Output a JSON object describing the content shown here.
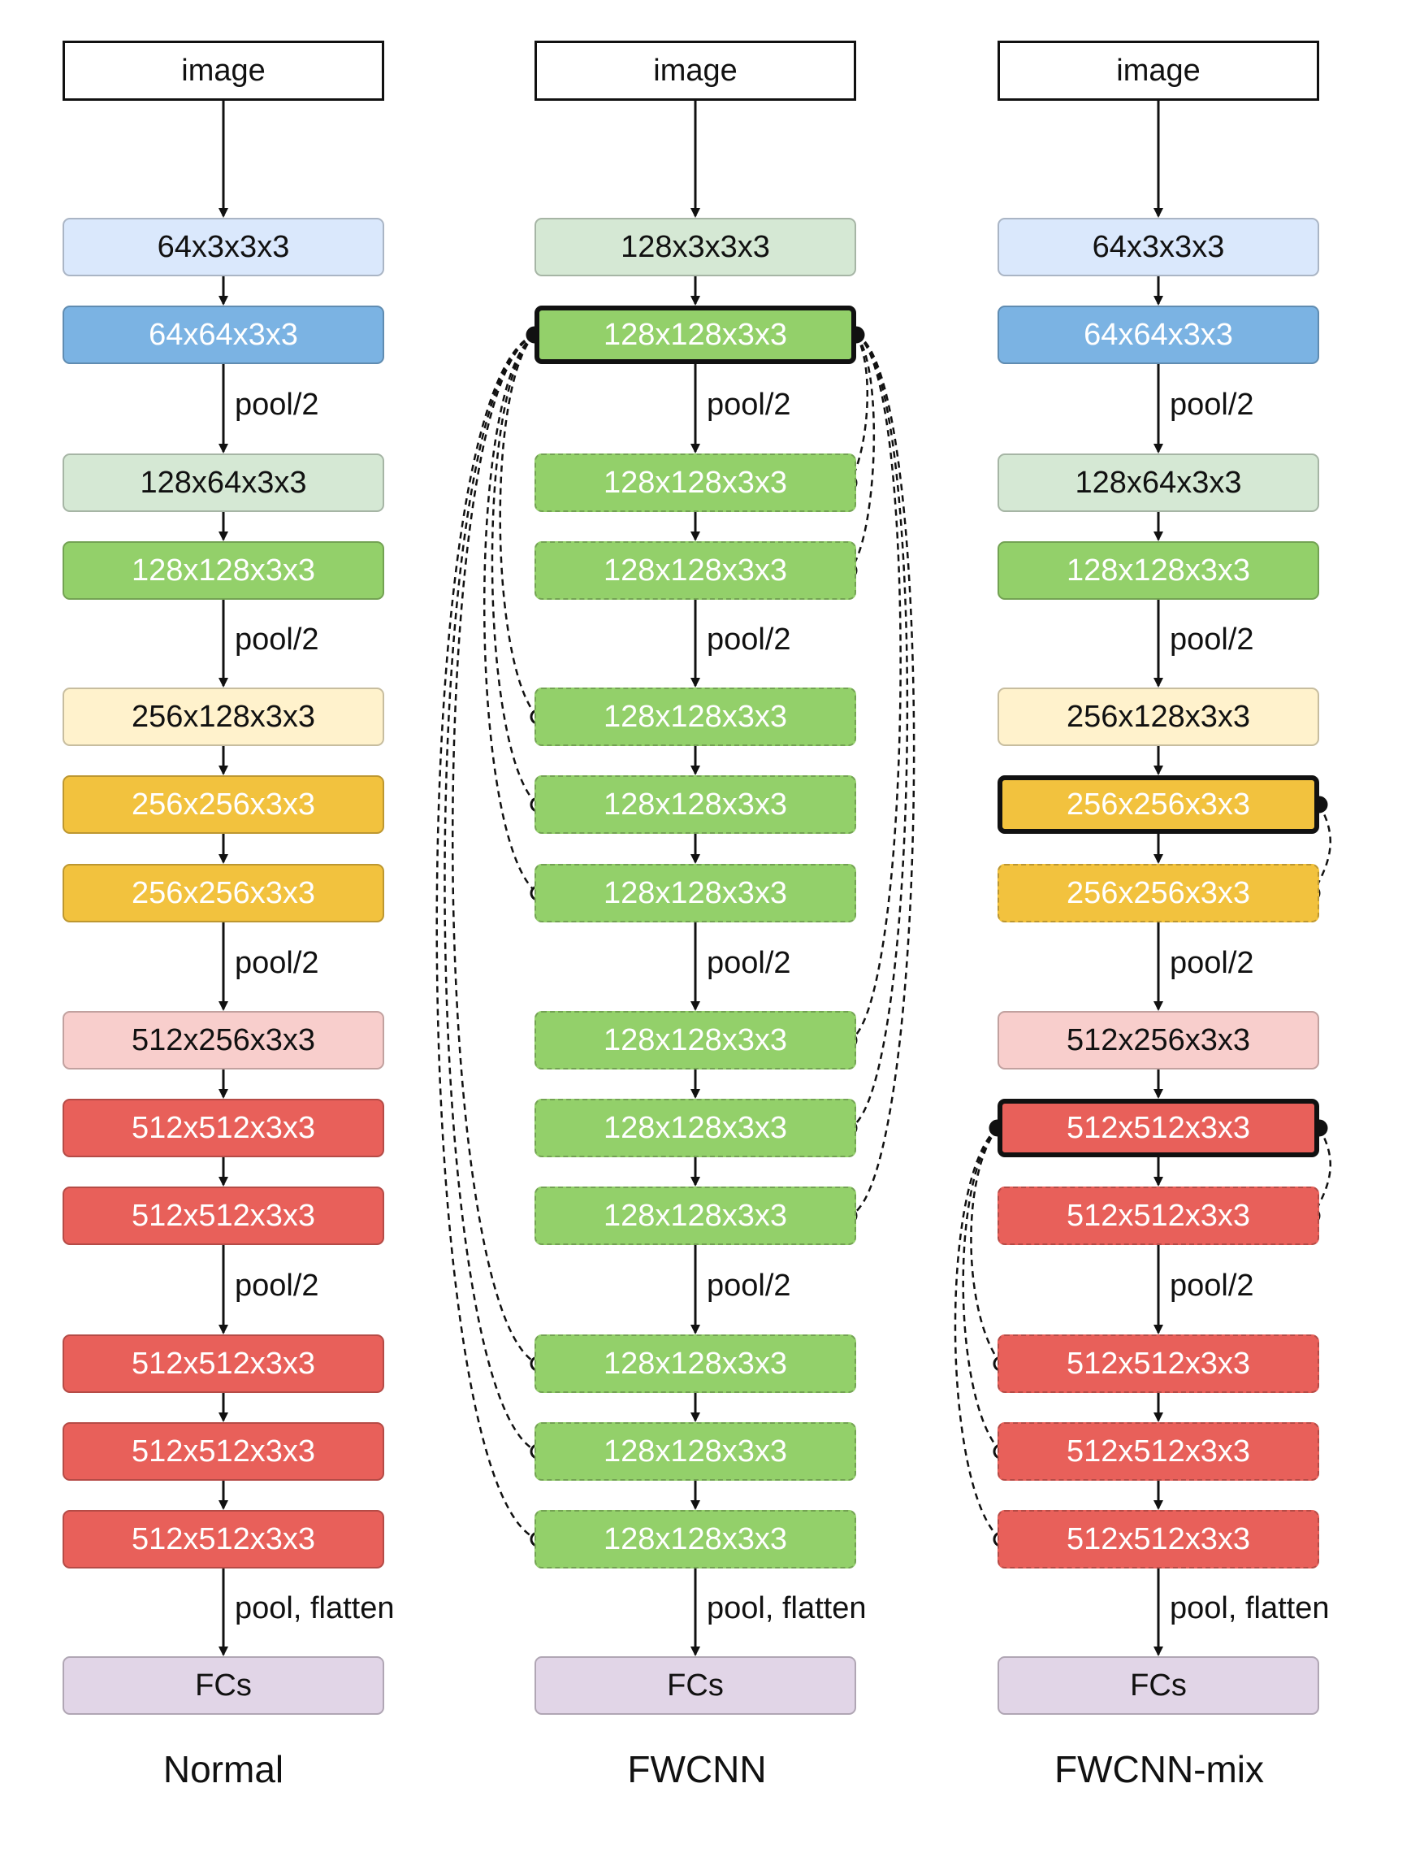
{
  "colors": {
    "lightblue": "#dae8fc",
    "blue": "#7bb3e3",
    "lightgreen": "#d5e8d4",
    "green": "#93d06a",
    "lightyellow": "#fff2cc",
    "yellow": "#f2c23e",
    "lightred": "#f8cecc",
    "red": "#e8605a",
    "purple": "#e1d5e7"
  },
  "columns": [
    {
      "title": "Normal",
      "layers": [
        {
          "label": "image",
          "fill": "white"
        },
        {
          "label": "64x3x3x3",
          "fill": "lightblue"
        },
        {
          "label": "64x64x3x3",
          "fill": "blue"
        },
        {
          "label": "128x64x3x3",
          "fill": "lightgreen"
        },
        {
          "label": "128x128x3x3",
          "fill": "green"
        },
        {
          "label": "256x128x3x3",
          "fill": "lightyellow"
        },
        {
          "label": "256x256x3x3",
          "fill": "yellow"
        },
        {
          "label": "256x256x3x3",
          "fill": "yellow"
        },
        {
          "label": "512x256x3x3",
          "fill": "lightred"
        },
        {
          "label": "512x512x3x3",
          "fill": "red"
        },
        {
          "label": "512x512x3x3",
          "fill": "red"
        },
        {
          "label": "512x512x3x3",
          "fill": "red"
        },
        {
          "label": "512x512x3x3",
          "fill": "red"
        },
        {
          "label": "512x512x3x3",
          "fill": "red"
        },
        {
          "label": "FCs",
          "fill": "purple"
        }
      ],
      "edges": [
        "",
        "",
        "pool/2",
        "",
        "pool/2",
        "",
        "",
        "pool/2",
        "",
        "",
        "pool/2",
        "",
        "",
        "pool, flatten"
      ]
    },
    {
      "title": "FWCNN",
      "layers": [
        {
          "label": "image",
          "fill": "white"
        },
        {
          "label": "128x3x3x3",
          "fill": "lightgreen"
        },
        {
          "label": "128x128x3x3",
          "fill": "green",
          "style": "bold"
        },
        {
          "label": "128x128x3x3",
          "fill": "green",
          "style": "dashed"
        },
        {
          "label": "128x128x3x3",
          "fill": "green",
          "style": "dashed"
        },
        {
          "label": "128x128x3x3",
          "fill": "green",
          "style": "dashed"
        },
        {
          "label": "128x128x3x3",
          "fill": "green",
          "style": "dashed"
        },
        {
          "label": "128x128x3x3",
          "fill": "green",
          "style": "dashed"
        },
        {
          "label": "128x128x3x3",
          "fill": "green",
          "style": "dashed"
        },
        {
          "label": "128x128x3x3",
          "fill": "green",
          "style": "dashed"
        },
        {
          "label": "128x128x3x3",
          "fill": "green",
          "style": "dashed"
        },
        {
          "label": "128x128x3x3",
          "fill": "green",
          "style": "dashed"
        },
        {
          "label": "128x128x3x3",
          "fill": "green",
          "style": "dashed"
        },
        {
          "label": "128x128x3x3",
          "fill": "green",
          "style": "dashed"
        },
        {
          "label": "FCs",
          "fill": "purple"
        }
      ],
      "edges": [
        "",
        "",
        "pool/2",
        "",
        "pool/2",
        "",
        "",
        "pool/2",
        "",
        "",
        "pool/2",
        "",
        "",
        "pool, flatten"
      ]
    },
    {
      "title": "FWCNN-mix",
      "layers": [
        {
          "label": "image",
          "fill": "white"
        },
        {
          "label": "64x3x3x3",
          "fill": "lightblue"
        },
        {
          "label": "64x64x3x3",
          "fill": "blue"
        },
        {
          "label": "128x64x3x3",
          "fill": "lightgreen"
        },
        {
          "label": "128x128x3x3",
          "fill": "green"
        },
        {
          "label": "256x128x3x3",
          "fill": "lightyellow"
        },
        {
          "label": "256x256x3x3",
          "fill": "yellow",
          "style": "bold"
        },
        {
          "label": "256x256x3x3",
          "fill": "yellow",
          "style": "dashed"
        },
        {
          "label": "512x256x3x3",
          "fill": "lightred"
        },
        {
          "label": "512x512x3x3",
          "fill": "red",
          "style": "bold"
        },
        {
          "label": "512x512x3x3",
          "fill": "red",
          "style": "dashed"
        },
        {
          "label": "512x512x3x3",
          "fill": "red",
          "style": "dashed"
        },
        {
          "label": "512x512x3x3",
          "fill": "red",
          "style": "dashed"
        },
        {
          "label": "512x512x3x3",
          "fill": "red",
          "style": "dashed"
        },
        {
          "label": "FCs",
          "fill": "purple"
        }
      ],
      "edges": [
        "",
        "",
        "pool/2",
        "",
        "pool/2",
        "",
        "",
        "pool/2",
        "",
        "",
        "pool/2",
        "",
        "",
        "pool, flatten"
      ]
    }
  ],
  "shared_weights": [
    {
      "column": 1,
      "source": 2,
      "right": [
        3,
        4,
        8,
        9,
        10
      ],
      "left": [
        5,
        6,
        7,
        11,
        12,
        13
      ]
    },
    {
      "column": 2,
      "source": 6,
      "right": [
        7
      ],
      "left": []
    },
    {
      "column": 2,
      "source": 9,
      "right": [
        10
      ],
      "left": [
        11,
        12,
        13
      ]
    }
  ]
}
